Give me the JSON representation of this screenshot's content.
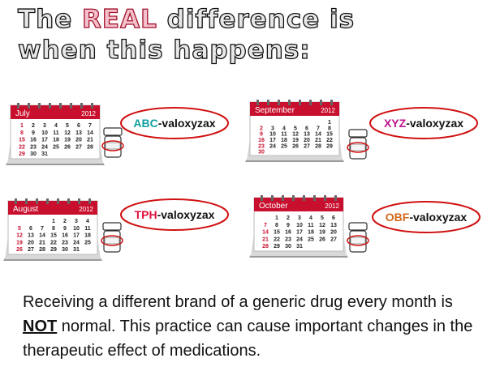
{
  "header": {
    "line1": {
      "before": "The",
      "highlight": "REAL",
      "after": "difference is"
    },
    "line2": "when this happens:"
  },
  "panels": [
    {
      "month": "July",
      "year": "2012",
      "prefix": "ABC",
      "suffix": "-valoxyzax",
      "prefix_color": "#12a0a0",
      "weeks": [
        [
          1,
          2,
          3,
          4,
          5,
          6,
          7
        ],
        [
          8,
          9,
          10,
          11,
          12,
          13,
          14
        ],
        [
          15,
          16,
          17,
          18,
          19,
          20,
          21
        ],
        [
          22,
          23,
          24,
          25,
          26,
          27,
          28
        ],
        [
          29,
          30,
          31
        ]
      ]
    },
    {
      "month": "September",
      "year": "2012",
      "prefix": "XYZ",
      "suffix": "-valoxyzax",
      "prefix_color": "#c0148c",
      "weeks": [
        [
          1
        ],
        [
          2,
          3,
          4,
          5,
          6,
          7,
          8
        ],
        [
          9,
          10,
          11,
          12,
          13,
          14,
          15
        ],
        [
          16,
          17,
          18,
          19,
          20,
          21,
          22
        ],
        [
          23,
          24,
          25,
          26,
          27,
          28,
          29
        ],
        [
          30
        ]
      ]
    },
    {
      "month": "August",
      "year": "2012",
      "prefix": "TPH",
      "suffix": "-valoxyzax",
      "prefix_color": "#e0103c",
      "weeks": [
        [
          1,
          2,
          3,
          4
        ],
        [
          5,
          6,
          7,
          8,
          9,
          10,
          11
        ],
        [
          12,
          13,
          14,
          15,
          16,
          17,
          18
        ],
        [
          19,
          20,
          21,
          22,
          23,
          24,
          25
        ],
        [
          26,
          27,
          28,
          29,
          30,
          31
        ]
      ]
    },
    {
      "month": "October",
      "year": "2012",
      "prefix": "OBF",
      "suffix": "-valoxyzax",
      "prefix_color": "#d2691e",
      "weeks": [
        [
          1,
          2,
          3,
          4,
          5,
          6
        ],
        [
          7,
          8,
          9,
          10,
          11,
          12,
          13
        ],
        [
          14,
          15,
          16,
          17,
          18,
          19,
          20
        ],
        [
          21,
          22,
          23,
          24,
          25,
          26,
          27
        ],
        [
          28,
          29,
          30,
          31
        ]
      ]
    }
  ],
  "body": {
    "part1": "Receiving a different brand of a generic drug every month is",
    "emphasis": "NOT",
    "part2": " normal. This practice can cause important changes in the therapeutic effect of medications."
  }
}
